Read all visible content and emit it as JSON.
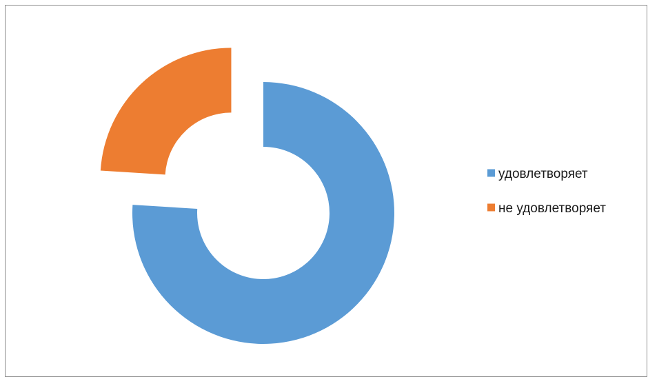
{
  "chart_data": {
    "type": "pie",
    "variant": "doughnut",
    "exploded": true,
    "title": "",
    "categories": [
      "удовлетворяет",
      "не удовлетворяет"
    ],
    "values": [
      76,
      24
    ],
    "colors": [
      "#5B9BD5",
      "#ED7D31"
    ],
    "legend_position": "right"
  }
}
